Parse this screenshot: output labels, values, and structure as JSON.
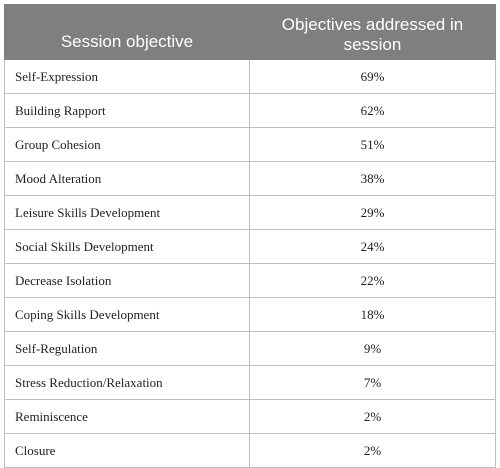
{
  "table": {
    "headers": {
      "objective": "Session objective",
      "addressed": "Objectives addressed in session"
    },
    "rows": [
      {
        "objective": "Self-Expression",
        "percent": "69%"
      },
      {
        "objective": "Building Rapport",
        "percent": "62%"
      },
      {
        "objective": "Group Cohesion",
        "percent": "51%"
      },
      {
        "objective": "Mood Alteration",
        "percent": "38%"
      },
      {
        "objective": "Leisure Skills Development",
        "percent": "29%"
      },
      {
        "objective": "Social Skills Development",
        "percent": "24%"
      },
      {
        "objective": "Decrease Isolation",
        "percent": "22%"
      },
      {
        "objective": "Coping Skills Development",
        "percent": "18%"
      },
      {
        "objective": "Self-Regulation",
        "percent": "9%"
      },
      {
        "objective": "Stress Reduction/Relaxation",
        "percent": "7%"
      },
      {
        "objective": "Reminiscence",
        "percent": "2%"
      },
      {
        "objective": "Closure",
        "percent": "2%"
      }
    ]
  }
}
